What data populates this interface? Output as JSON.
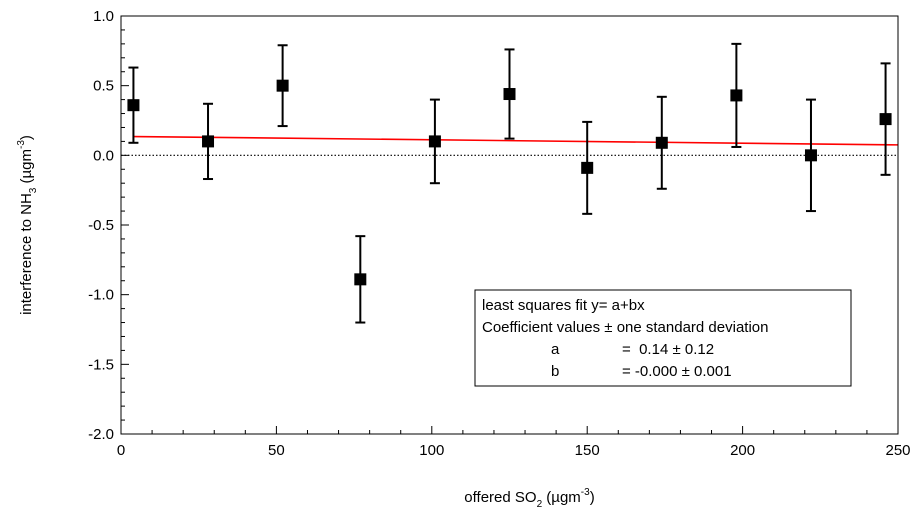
{
  "chart_data": {
    "type": "scatter",
    "xlabel_parts": [
      "offered SO",
      "2",
      " (µgm",
      "-3",
      ")"
    ],
    "ylabel_parts": [
      "interference to NH",
      "3",
      " (µgm",
      "-3",
      ")"
    ],
    "xlim": [
      0,
      250
    ],
    "ylim": [
      -2.0,
      1.0
    ],
    "x_ticks": [
      0,
      50,
      100,
      150,
      200,
      250
    ],
    "x_tick_labels": [
      "0",
      "50",
      "100",
      "150",
      "200",
      "250"
    ],
    "y_ticks": [
      1.0,
      0.5,
      0.0,
      -0.5,
      -1.0,
      -1.5,
      -2.0
    ],
    "y_tick_labels": [
      "1.0",
      "0.5",
      "0.0",
      "-0.5",
      "-1.0",
      "-1.5",
      "-2.0"
    ],
    "zero_line": 0.0,
    "points": [
      {
        "x": 4,
        "y": 0.36,
        "err": 0.27
      },
      {
        "x": 28,
        "y": 0.1,
        "err": 0.27
      },
      {
        "x": 52,
        "y": 0.5,
        "err": 0.29
      },
      {
        "x": 77,
        "y": -0.89,
        "err": 0.31
      },
      {
        "x": 101,
        "y": 0.1,
        "err": 0.3
      },
      {
        "x": 125,
        "y": 0.44,
        "err": 0.32
      },
      {
        "x": 150,
        "y": -0.09,
        "err": 0.33
      },
      {
        "x": 174,
        "y": 0.09,
        "err": 0.33
      },
      {
        "x": 198,
        "y": 0.43,
        "err": 0.37
      },
      {
        "x": 222,
        "y": 0.0,
        "err": 0.4
      },
      {
        "x": 246,
        "y": 0.26,
        "err": 0.4
      }
    ],
    "fit": {
      "x": [
        4,
        250
      ],
      "y": [
        0.135,
        0.075
      ]
    },
    "colors": {
      "points": "#000000",
      "fit": "#ff0000",
      "zero_line": "#000000"
    },
    "legend": {
      "placement": "bottom-right",
      "line1": "least squares fit y= a+bx",
      "line2": "Coefficient values ± one standard deviation",
      "rows": [
        {
          "name": "a",
          "value": "=  0.14 ± 0.12"
        },
        {
          "name": "b",
          "value": "= -0.000 ± 0.001"
        }
      ]
    }
  }
}
